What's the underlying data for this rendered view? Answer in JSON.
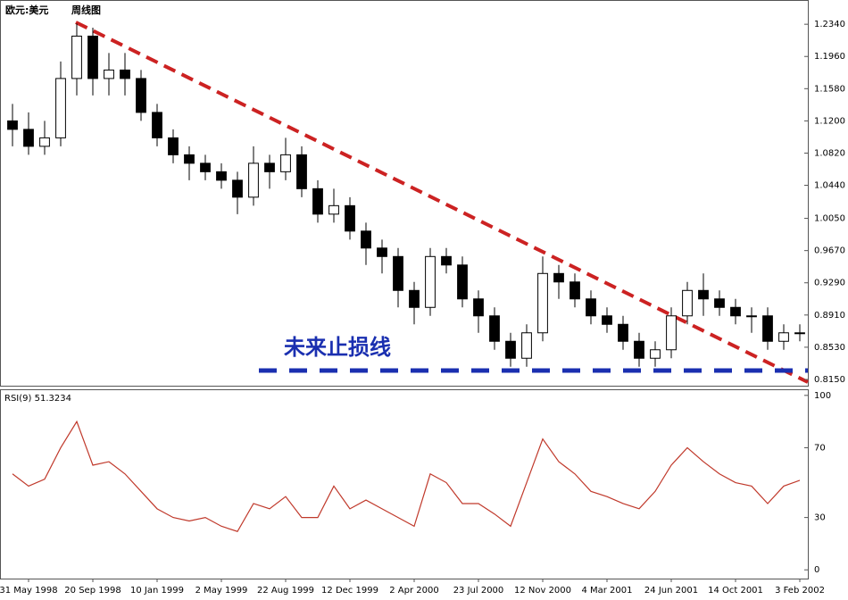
{
  "chart_data": [
    {
      "type": "candlestick",
      "title": "欧元:美元",
      "subtitle": "周线图",
      "annotation": "未来止损线",
      "categories": [
        null,
        "31 May 1998",
        null,
        null,
        null,
        "20 Sep 1998",
        null,
        null,
        null,
        "10 Jan 1999",
        null,
        null,
        null,
        "2 May 1999",
        null,
        null,
        null,
        "22 Aug 1999",
        null,
        null,
        null,
        "12 Dec 1999",
        null,
        null,
        null,
        "2 Apr 2000",
        null,
        null,
        null,
        "23 Jul 2000",
        null,
        null,
        null,
        "12 Nov 2000",
        null,
        null,
        null,
        "4 Mar 2001",
        null,
        null,
        null,
        "24 Jun 2001",
        null,
        null,
        null,
        "14 Oct 2001",
        null,
        null,
        null,
        "3 Feb 2002"
      ],
      "open": [
        1.12,
        1.11,
        1.09,
        1.1,
        1.17,
        1.22,
        1.17,
        1.18,
        1.17,
        1.13,
        1.1,
        1.08,
        1.07,
        1.06,
        1.05,
        1.03,
        1.07,
        1.06,
        1.08,
        1.04,
        1.01,
        1.02,
        0.99,
        0.97,
        0.96,
        0.92,
        0.9,
        0.96,
        0.95,
        0.91,
        0.89,
        0.86,
        0.84,
        0.87,
        0.94,
        0.93,
        0.91,
        0.89,
        0.88,
        0.86,
        0.84,
        0.85,
        0.89,
        0.92,
        0.91,
        0.9,
        0.89,
        0.89,
        0.86,
        0.87
      ],
      "high": [
        1.14,
        1.13,
        1.12,
        1.19,
        1.235,
        1.23,
        1.2,
        1.2,
        1.18,
        1.14,
        1.11,
        1.09,
        1.08,
        1.07,
        1.06,
        1.09,
        1.08,
        1.1,
        1.09,
        1.05,
        1.04,
        1.03,
        1.0,
        0.98,
        0.97,
        0.93,
        0.97,
        0.97,
        0.96,
        0.92,
        0.9,
        0.87,
        0.88,
        0.96,
        0.95,
        0.94,
        0.92,
        0.9,
        0.89,
        0.87,
        0.86,
        0.9,
        0.93,
        0.94,
        0.92,
        0.91,
        0.9,
        0.9,
        0.88,
        0.88
      ],
      "low": [
        1.09,
        1.08,
        1.08,
        1.09,
        1.15,
        1.15,
        1.15,
        1.15,
        1.12,
        1.09,
        1.07,
        1.05,
        1.05,
        1.04,
        1.01,
        1.02,
        1.04,
        1.05,
        1.03,
        1.0,
        1.0,
        0.98,
        0.95,
        0.94,
        0.9,
        0.88,
        0.89,
        0.94,
        0.9,
        0.87,
        0.85,
        0.83,
        0.83,
        0.86,
        0.91,
        0.9,
        0.88,
        0.87,
        0.85,
        0.83,
        0.83,
        0.84,
        0.88,
        0.89,
        0.89,
        0.88,
        0.87,
        0.85,
        0.85,
        0.86
      ],
      "close": [
        1.11,
        1.09,
        1.1,
        1.17,
        1.22,
        1.17,
        1.18,
        1.17,
        1.13,
        1.1,
        1.08,
        1.07,
        1.06,
        1.05,
        1.03,
        1.07,
        1.06,
        1.08,
        1.04,
        1.01,
        1.02,
        0.99,
        0.97,
        0.96,
        0.92,
        0.9,
        0.96,
        0.95,
        0.91,
        0.89,
        0.86,
        0.84,
        0.87,
        0.94,
        0.93,
        0.91,
        0.89,
        0.88,
        0.86,
        0.84,
        0.85,
        0.89,
        0.92,
        0.91,
        0.9,
        0.89,
        0.89,
        0.86,
        0.87,
        0.87
      ],
      "up_color": "#ffffff",
      "down_color": "#000000",
      "line_color": "#000000",
      "ylim": [
        0.8076,
        1.2626
      ],
      "yticks": [
        {
          "value": 1.234,
          "label": "1.2340"
        },
        {
          "value": 1.196,
          "label": "1.1960"
        },
        {
          "value": 1.158,
          "label": "1.1580"
        },
        {
          "value": 1.12,
          "label": "1.1200"
        },
        {
          "value": 1.082,
          "label": "1.0820"
        },
        {
          "value": 1.044,
          "label": "1.0440"
        },
        {
          "value": 1.005,
          "label": "1.0050"
        },
        {
          "value": 0.967,
          "label": "0.9670"
        },
        {
          "value": 0.929,
          "label": "0.9290"
        },
        {
          "value": 0.891,
          "label": "0.8910"
        },
        {
          "value": 0.853,
          "label": "0.8530"
        },
        {
          "value": 0.815,
          "label": "0.8150"
        }
      ]
    },
    {
      "type": "line",
      "title": "RSI(9) 51.3234",
      "color": "#c0392b",
      "values": [
        55,
        48,
        52,
        70,
        85,
        60,
        62,
        55,
        45,
        35,
        30,
        28,
        30,
        25,
        22,
        38,
        35,
        42,
        30,
        30,
        48,
        35,
        40,
        35,
        30,
        25,
        55,
        50,
        38,
        38,
        32,
        25,
        50,
        75,
        62,
        55,
        45,
        42,
        38,
        35,
        45,
        60,
        70,
        62,
        55,
        50,
        48,
        38,
        48,
        51.3234
      ],
      "ylim": [
        -5,
        103.5
      ],
      "yticks": [
        0,
        30,
        70,
        100
      ]
    }
  ]
}
